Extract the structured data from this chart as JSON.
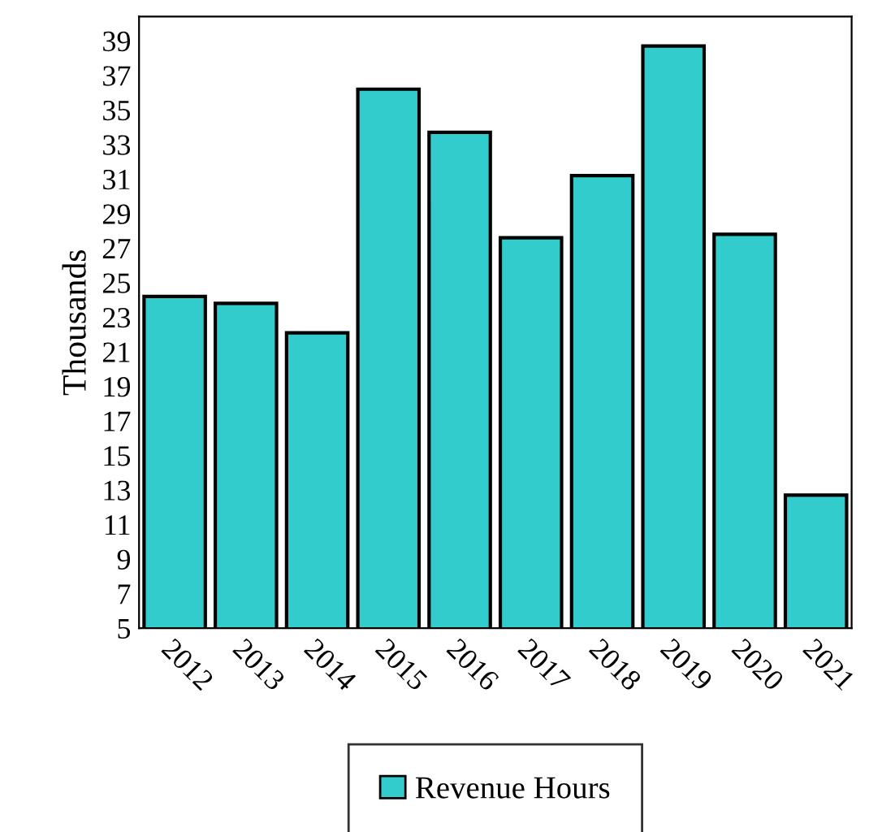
{
  "chart_data": {
    "type": "bar",
    "ylabel": "Thousands",
    "categories": [
      "2012",
      "2013",
      "2014",
      "2015",
      "2016",
      "2017",
      "2018",
      "2019",
      "2020",
      "2021"
    ],
    "series": [
      {
        "name": "Revenue Hours",
        "color": "#33cccc",
        "values": [
          24.2,
          23.8,
          22.1,
          36.2,
          33.7,
          27.6,
          31.2,
          38.7,
          27.8,
          12.7
        ]
      }
    ],
    "ylim": [
      5,
      40.4
    ],
    "yticks": [
      5,
      7,
      9,
      11,
      13,
      15,
      17,
      19,
      21,
      23,
      25,
      27,
      29,
      31,
      33,
      35,
      37,
      39
    ],
    "grid": false,
    "legend": "bottom"
  }
}
